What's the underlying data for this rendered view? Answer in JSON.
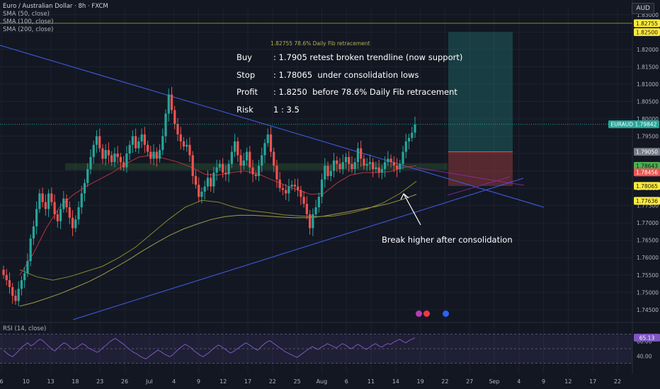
{
  "header": {
    "title": "Euro / Australian Dollar · 8h · FXCM",
    "indicators": [
      "SMA (50, close)",
      "SMA (100, close)",
      "SMA (200, close)"
    ],
    "currency": "AUD"
  },
  "notes": [
    {
      "key": "Buy",
      "value": ": 1.7905 retest broken trendline (now support)"
    },
    {
      "key": "Stop",
      "value": ": 1.78065  under consolidation lows"
    },
    {
      "key": "Profit",
      "value": ": 1.8250  before 78.6% Daily Fib retracement"
    },
    {
      "key": "Risk",
      "value": "1 : 3.5"
    }
  ],
  "annotation": "Break higher after consolidation",
  "fib_label": "1.82755  78.6% Daily Fib retracement",
  "rsi": {
    "label": "RSI (14, close)",
    "value": "65.13",
    "ticks": [
      "60.00",
      "40.00"
    ]
  },
  "price_badges": [
    {
      "text": "1.82755",
      "bg": "#ffeb3b",
      "fg": "#131722",
      "price": 1.82755
    },
    {
      "text": "1.82500",
      "bg": "#ffeb3b",
      "fg": "#131722",
      "price": 1.825
    },
    {
      "text": "EURAUD  1.79842",
      "bg": "#26a69a",
      "fg": "#ffffff",
      "price": 1.79842,
      "wide": true
    },
    {
      "text": "1.79050",
      "bg": "#787b86",
      "fg": "#ffffff",
      "price": 1.7905
    },
    {
      "text": "1.78643",
      "bg": "#4caf50",
      "fg": "#131722",
      "price": 1.78643
    },
    {
      "text": "1.78456",
      "bg": "#ef5350",
      "fg": "#ffffff",
      "price": 1.78456
    },
    {
      "text": "1.78065",
      "bg": "#ffeb3b",
      "fg": "#131722",
      "price": 1.78065
    },
    {
      "text": "1.77636",
      "bg": "#ffeb3b",
      "fg": "#131722",
      "price": 1.77636
    }
  ],
  "colors": {
    "up": "#26a69a",
    "down": "#ef5350",
    "sma50": "#b2353f",
    "sma100": "#8a8a2a",
    "sma200": "#9e9b4a",
    "trend": "#3d5bd9",
    "rsi": "#7e57c2"
  },
  "chart_data": {
    "type": "candlestick",
    "title": "Euro / Australian Dollar · 8h · FXCM",
    "y_ticks": [
      1.83,
      1.825,
      1.82,
      1.815,
      1.81,
      1.805,
      1.8,
      1.795,
      1.79,
      1.785,
      1.78,
      1.775,
      1.77,
      1.765,
      1.76,
      1.755,
      1.75,
      1.745
    ],
    "ylim": [
      1.7415,
      1.8322
    ],
    "x_ticks": [
      "6",
      "10",
      "13",
      "18",
      "23",
      "26",
      "Jul",
      "4",
      "9",
      "12",
      "17",
      "22",
      "25",
      "Aug",
      "6",
      "11",
      "14",
      "19",
      "22",
      "27",
      "Sep",
      "4",
      "9",
      "12",
      "17",
      "22"
    ],
    "closes": [
      1.755,
      1.7535,
      1.7515,
      1.749,
      1.7475,
      1.751,
      1.7535,
      1.7555,
      1.759,
      1.7655,
      1.769,
      1.774,
      1.7785,
      1.776,
      1.774,
      1.7785,
      1.776,
      1.7725,
      1.7705,
      1.774,
      1.777,
      1.7745,
      1.7715,
      1.7685,
      1.771,
      1.7745,
      1.7785,
      1.7815,
      1.7855,
      1.789,
      1.7925,
      1.795,
      1.7915,
      1.7885,
      1.791,
      1.7895,
      1.7875,
      1.79,
      1.789,
      1.7875,
      1.786,
      1.79,
      1.7925,
      1.795,
      1.7915,
      1.7935,
      1.7955,
      1.7925,
      1.7905,
      1.7885,
      1.7905,
      1.7885,
      1.791,
      1.795,
      1.8015,
      1.807,
      1.8025,
      1.7985,
      1.7955,
      1.7935,
      1.792,
      1.7925,
      1.7895,
      1.7835,
      1.781,
      1.7775,
      1.779,
      1.7805,
      1.783,
      1.7805,
      1.7845,
      1.786,
      1.787,
      1.7845,
      1.784,
      1.787,
      1.7905,
      1.7935,
      1.7895,
      1.7865,
      1.788,
      1.7905,
      1.786,
      1.784,
      1.7835,
      1.7865,
      1.7895,
      1.793,
      1.7955,
      1.7905,
      1.7865,
      1.7825,
      1.78,
      1.7795,
      1.7785,
      1.7805,
      1.781,
      1.7805,
      1.7795,
      1.7775,
      1.7755,
      1.7725,
      1.7685,
      1.7725,
      1.7745,
      1.7775,
      1.7825,
      1.7865,
      1.7835,
      1.785,
      1.788,
      1.787,
      1.7855,
      1.7875,
      1.789,
      1.787,
      1.7855,
      1.7875,
      1.7915,
      1.7885,
      1.7865,
      1.787,
      1.7875,
      1.7855,
      1.786,
      1.7845,
      1.7855,
      1.7875,
      1.7885,
      1.7875,
      1.7865,
      1.7855,
      1.787,
      1.7905,
      1.7935,
      1.7945,
      1.796,
      1.7984
    ],
    "sma200": [
      1.746,
      1.747,
      1.7483,
      1.7497,
      1.7513,
      1.753,
      1.755,
      1.7572,
      1.7595,
      1.762,
      1.7643,
      1.7665,
      1.7683,
      1.7697,
      1.771,
      1.7718,
      1.7722,
      1.7722,
      1.772,
      1.7717,
      1.7715,
      1.7715,
      1.7718,
      1.7725,
      1.7732,
      1.774,
      1.7747,
      1.7756,
      1.7768,
      1.7782
    ],
    "sma100": [
      1.7565,
      1.7545,
      1.7535,
      1.7545,
      1.756,
      1.7575,
      1.76,
      1.763,
      1.767,
      1.771,
      1.7745,
      1.7765,
      1.776,
      1.7745,
      1.7735,
      1.773,
      1.7723,
      1.772,
      1.7718,
      1.772,
      1.7728,
      1.774,
      1.7758,
      1.7785,
      1.782
    ],
    "sma50": [
      1.755,
      1.761,
      1.7685,
      1.7745,
      1.778,
      1.7805,
      1.7825,
      1.7845,
      1.787,
      1.789,
      1.7895,
      1.7885,
      1.7875,
      1.786,
      1.784,
      1.7838,
      1.7845,
      1.785,
      1.7842,
      1.7825,
      1.781,
      1.7795,
      1.7782,
      1.7785,
      1.7815,
      1.7838,
      1.7845,
      1.7845,
      1.7848,
      1.786,
      1.7865
    ],
    "trade": {
      "entry": 1.7905,
      "stop": 1.78065,
      "target": 1.825
    },
    "fib_786": 1.82755,
    "rsi_values": [
      48,
      44,
      41,
      39,
      43,
      47,
      52,
      55,
      58,
      54,
      56,
      60,
      63,
      61,
      57,
      53,
      49,
      47,
      51,
      55,
      58,
      56,
      52,
      49,
      51,
      54,
      57,
      55,
      51,
      49,
      47,
      45,
      48,
      52,
      55,
      59,
      62,
      64,
      61,
      58,
      55,
      51,
      48,
      45,
      43,
      40,
      38,
      36,
      39,
      42,
      45,
      48,
      46,
      43,
      41,
      39,
      42,
      46,
      50,
      53,
      56,
      54,
      51,
      47,
      44,
      41,
      39,
      42,
      45,
      49,
      52,
      55,
      53,
      50,
      47,
      44,
      46,
      49,
      52,
      55,
      58,
      56,
      53,
      50,
      48,
      52,
      56,
      59,
      61,
      58,
      55,
      52,
      49,
      46,
      44,
      42,
      40,
      38,
      41,
      44,
      47,
      50,
      53,
      51,
      49,
      52,
      54,
      57,
      55,
      53,
      51,
      54,
      57,
      55,
      52,
      50,
      53,
      56,
      54,
      51,
      49,
      52,
      55,
      57,
      54,
      52,
      55,
      57,
      56,
      59,
      61,
      63,
      60,
      58,
      61,
      63,
      65.13
    ]
  }
}
